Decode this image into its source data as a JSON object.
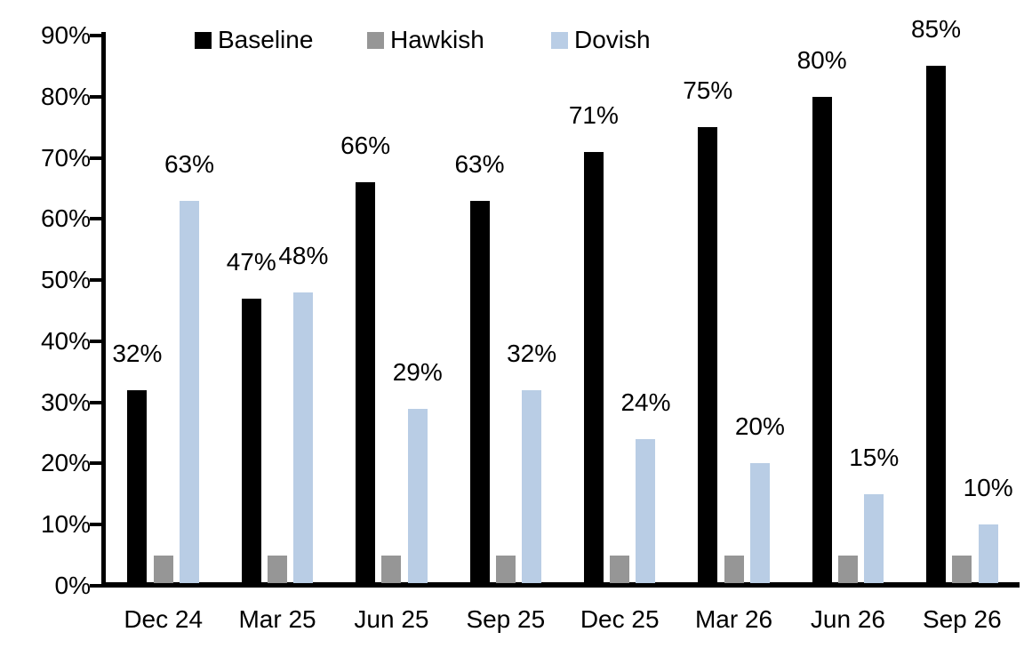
{
  "chart_data": {
    "type": "bar",
    "title": "",
    "xlabel": "",
    "ylabel": "",
    "categories": [
      "Dec 24",
      "Mar 25",
      "Jun 25",
      "Sep 25",
      "Dec 25",
      "Mar 26",
      "Jun 26",
      "Sep 26"
    ],
    "series": [
      {
        "name": "Baseline",
        "color": "#000000",
        "values": [
          32,
          47,
          66,
          63,
          71,
          75,
          80,
          85
        ],
        "data_labels": [
          "32%",
          "47%",
          "66%",
          "63%",
          "71%",
          "75%",
          "80%",
          "85%"
        ]
      },
      {
        "name": "Hawkish",
        "color": "#969696",
        "values": [
          5,
          5,
          5,
          5,
          5,
          5,
          5,
          5
        ],
        "data_labels": null
      },
      {
        "name": "Dovish",
        "color": "#B9CDE5",
        "values": [
          63,
          48,
          29,
          32,
          24,
          20,
          15,
          10
        ],
        "data_labels": [
          "63%",
          "48%",
          "29%",
          "32%",
          "24%",
          "20%",
          "15%",
          "10%"
        ]
      }
    ],
    "ylim": [
      0,
      90
    ],
    "ytick_step": 10,
    "ytick_labels": [
      "0%",
      "10%",
      "20%",
      "30%",
      "40%",
      "50%",
      "60%",
      "70%",
      "80%",
      "90%"
    ],
    "grid": false,
    "legend_position": "top",
    "axis_color": "#000000"
  }
}
